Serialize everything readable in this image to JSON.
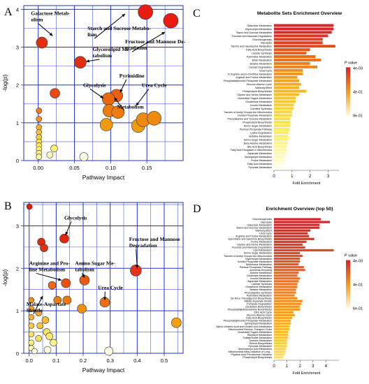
{
  "chart_data": [
    {
      "panel": "A",
      "type": "scatter",
      "xlabel": "Pathway Impact",
      "ylabel": "-log(p)",
      "xlim": [
        -0.02,
        0.2
      ],
      "ylim": [
        0,
        4.1
      ],
      "xticks": [
        "0.00",
        "0.05",
        "0.10",
        "0.15"
      ],
      "yticks": [
        "0",
        "1",
        "2",
        "3",
        "4"
      ],
      "grid": true,
      "points": [
        {
          "x": 0.005,
          "y": 3.12,
          "size": 16,
          "color": "#e03010"
        },
        {
          "x": 0.148,
          "y": 3.93,
          "size": 21,
          "color": "#e81c10"
        },
        {
          "x": 0.183,
          "y": 3.7,
          "size": 21,
          "color": "#e81c10"
        },
        {
          "x": 0.058,
          "y": 2.6,
          "size": 17,
          "color": "#e02e10"
        },
        {
          "x": 0.108,
          "y": 1.72,
          "size": 18,
          "color": "#ea6010"
        },
        {
          "x": 0.097,
          "y": 1.63,
          "size": 18,
          "color": "#ea6810"
        },
        {
          "x": 0.098,
          "y": 1.32,
          "size": 18,
          "color": "#ee7a10"
        },
        {
          "x": 0.11,
          "y": 1.28,
          "size": 18,
          "color": "#ee7a10"
        },
        {
          "x": 0.145,
          "y": 1.08,
          "size": 20,
          "color": "#ef8a10"
        },
        {
          "x": 0.16,
          "y": 1.12,
          "size": 20,
          "color": "#ef8a10"
        },
        {
          "x": 0.138,
          "y": 0.92,
          "size": 19,
          "color": "#f09a10"
        },
        {
          "x": 0.094,
          "y": 0.95,
          "size": 18,
          "color": "#f09a10"
        },
        {
          "x": 0.023,
          "y": 1.78,
          "size": 14,
          "color": "#e84812"
        },
        {
          "x": 0.001,
          "y": 1.32,
          "size": 8,
          "color": "#ef7a20"
        },
        {
          "x": 0.001,
          "y": 1.1,
          "size": 8,
          "color": "#f39030"
        },
        {
          "x": 0.001,
          "y": 0.88,
          "size": 8,
          "color": "#f6b030"
        },
        {
          "x": 0.001,
          "y": 0.75,
          "size": 8,
          "color": "#f6c040"
        },
        {
          "x": 0.001,
          "y": 0.62,
          "size": 8,
          "color": "#f8d040"
        },
        {
          "x": 0.001,
          "y": 0.5,
          "size": 8,
          "color": "#fae050"
        },
        {
          "x": 0.001,
          "y": 0.4,
          "size": 8,
          "color": "#fce860"
        },
        {
          "x": 0.001,
          "y": 0.3,
          "size": 8,
          "color": "#fcf070"
        },
        {
          "x": 0.001,
          "y": 0.2,
          "size": 8,
          "color": "#fef080"
        },
        {
          "x": 0.001,
          "y": 0.1,
          "size": 8,
          "color": "#fef8a0"
        },
        {
          "x": 0.022,
          "y": 0.32,
          "size": 10,
          "color": "#fcf070"
        },
        {
          "x": 0.016,
          "y": 0.15,
          "size": 9,
          "color": "#fefac0"
        },
        {
          "x": 0.063,
          "y": 0.1,
          "size": 12,
          "color": "#fffde8"
        }
      ],
      "annotations": [
        {
          "text": "Galactose Metab-",
          "text2": "olism",
          "x": -0.01,
          "y": 3.85,
          "ax": 0.02,
          "ay": 3.3
        },
        {
          "text": "Starch and Sucrose Metabo-",
          "text2": "lism",
          "x": 0.068,
          "y": 3.45,
          "ax": 0.12,
          "ay": 3.88
        },
        {
          "text": "Glycerolipid Me-",
          "text2": "tabolism",
          "x": 0.075,
          "y": 2.9,
          "ax": 0.066,
          "ay": 2.62
        },
        {
          "text": "Fructose and Mannose De-",
          "text2": "gradation",
          "x": 0.12,
          "y": 3.1,
          "ax": 0.175,
          "ay": 3.4
        },
        {
          "text": "Pyrimidine",
          "text2": "",
          "x": 0.112,
          "y": 2.2,
          "ax": 0.113,
          "ay": 1.8
        },
        {
          "text": "Glycolysis",
          "text2": "",
          "x": 0.062,
          "y": 1.95,
          "ax": 0.09,
          "ay": 1.65
        },
        {
          "text": "Metabolism",
          "text2": "",
          "x": 0.109,
          "y": 1.38,
          "ax": 0.105,
          "ay": 1.67
        },
        {
          "text": "Urea Cycle",
          "text2": "",
          "x": 0.143,
          "y": 1.95,
          "ax": 0.135,
          "ay": 1.45
        }
      ]
    },
    {
      "panel": "B",
      "type": "scatter",
      "xlabel": "Pathway Impact",
      "ylabel": "-log(p)",
      "xlim": [
        -0.02,
        0.57
      ],
      "ylim": [
        0,
        3.55
      ],
      "xticks": [
        "0.0",
        "0.1",
        "0.2",
        "0.3",
        "0.4",
        "0.5"
      ],
      "yticks": [
        "0",
        "1",
        "2",
        "3"
      ],
      "grid": true,
      "points": [
        {
          "x": 0.001,
          "y": 3.45,
          "size": 8,
          "color": "#e41a10"
        },
        {
          "x": 0.045,
          "y": 2.62,
          "size": 11,
          "color": "#e02a10"
        },
        {
          "x": 0.055,
          "y": 2.48,
          "size": 11,
          "color": "#e03210"
        },
        {
          "x": 0.13,
          "y": 2.7,
          "size": 13,
          "color": "#e02610"
        },
        {
          "x": 0.395,
          "y": 1.95,
          "size": 16,
          "color": "#e8321a"
        },
        {
          "x": 0.136,
          "y": 1.65,
          "size": 13,
          "color": "#ea5010"
        },
        {
          "x": 0.205,
          "y": 1.72,
          "size": 14,
          "color": "#ea5a10"
        },
        {
          "x": 0.085,
          "y": 1.6,
          "size": 11,
          "color": "#ee6a10"
        },
        {
          "x": 0.28,
          "y": 1.2,
          "size": 14,
          "color": "#ef7010"
        },
        {
          "x": 0.195,
          "y": 1.05,
          "size": 13,
          "color": "#f09010"
        },
        {
          "x": 0.14,
          "y": 1.25,
          "size": 12,
          "color": "#ef7810"
        },
        {
          "x": 0.105,
          "y": 1.25,
          "size": 11,
          "color": "#ef7a10"
        },
        {
          "x": 0.545,
          "y": 0.72,
          "size": 14,
          "color": "#f5a010"
        },
        {
          "x": 0.295,
          "y": 0.05,
          "size": 12,
          "color": "#fffde8"
        },
        {
          "x": 0.008,
          "y": 1.25,
          "size": 8,
          "color": "#f09020"
        },
        {
          "x": 0.008,
          "y": 1.05,
          "size": 8,
          "color": "#f3a030"
        },
        {
          "x": 0.008,
          "y": 0.85,
          "size": 8,
          "color": "#f6b030"
        },
        {
          "x": 0.008,
          "y": 0.65,
          "size": 8,
          "color": "#f8c840"
        },
        {
          "x": 0.008,
          "y": 0.45,
          "size": 8,
          "color": "#fae060"
        },
        {
          "x": 0.008,
          "y": 0.25,
          "size": 8,
          "color": "#fcf080"
        },
        {
          "x": 0.008,
          "y": 0.12,
          "size": 8,
          "color": "#fef8b0"
        },
        {
          "x": 0.035,
          "y": 0.95,
          "size": 9,
          "color": "#f5a830"
        },
        {
          "x": 0.04,
          "y": 0.65,
          "size": 9,
          "color": "#f8c840"
        },
        {
          "x": 0.035,
          "y": 0.35,
          "size": 9,
          "color": "#fae060"
        },
        {
          "x": 0.06,
          "y": 0.78,
          "size": 10,
          "color": "#f6b838"
        },
        {
          "x": 0.065,
          "y": 0.5,
          "size": 10,
          "color": "#fae068"
        },
        {
          "x": 0.075,
          "y": 0.4,
          "size": 10,
          "color": "#fce870"
        },
        {
          "x": 0.068,
          "y": 0.08,
          "size": 10,
          "color": "#fffbe0"
        },
        {
          "x": 0.09,
          "y": 0.25,
          "size": 10,
          "color": "#fdf090"
        },
        {
          "x": 0.02,
          "y": 0.05,
          "size": 8,
          "color": "#fffde8"
        }
      ],
      "annotations": [
        {
          "text": "Glycolysis",
          "text2": "",
          "x": 0.13,
          "y": 3.15,
          "ax": 0.135,
          "ay": 2.78
        },
        {
          "text": "Arginine and Pro-",
          "text2": "line Metabolism",
          "x": 0.0,
          "y": 2.08,
          "ax": 0.12,
          "ay": 1.72
        },
        {
          "text": "Amino Sugar Me-",
          "text2": "tabolism",
          "x": 0.17,
          "y": 2.08,
          "ax": 0.205,
          "ay": 1.78
        },
        {
          "text": "Fructose and Mannose",
          "text2": "Degradation",
          "x": 0.37,
          "y": 2.65,
          "ax": 0.4,
          "ay": 2.0
        },
        {
          "text": "Urea Cycle",
          "text2": "",
          "x": 0.255,
          "y": 1.5,
          "ax": 0.28,
          "ay": 1.25
        },
        {
          "text": "Malate-Aspartate",
          "text2": "Shuttle",
          "x": -0.01,
          "y": 1.12,
          "ax": 0.05,
          "ay": 1.35
        }
      ]
    },
    {
      "panel": "C",
      "type": "bar",
      "orientation": "horizontal",
      "title": "Metabolite Sets Enrichment Overview",
      "xlabel": "Fold Enrichment",
      "xticks": [
        "0",
        "1",
        "2",
        "3"
      ],
      "xlim": [
        0,
        3.6
      ],
      "legend_title": "P value",
      "legend_labels": [
        "4e-03",
        "4e-01",
        "9e-01"
      ],
      "categories": [
        "Galactose Metabolism",
        "Glycerolipid Metabolism",
        "Starch and Sucrose Metabolism",
        "Fructose and Mannose Degradation",
        "Gluconeogenesis",
        "Glycolysis",
        "Taurine and Hypotaurine Metabolism",
        "Fatty Acid Biosynthesis",
        "Lactose Synthesis",
        "Pyrimidine Metabolism",
        "Biotin Metabolism",
        "Betaine Metabolism",
        "Lactose Degradation",
        "Urea Cycle",
        "D-Arginine and D-Ornithine Metabolism",
        "Arginine and Proline Metabolism",
        "Phosphatidylinositol Phosphate Metabolism",
        "Glucose-Alanine Cycle",
        "Warburg Effect",
        "Phospholipid Biosynthesis",
        "Glycine and Serine Metabolism",
        "Nucleotide Sugars Metabolism",
        "Glutathione Metabolism",
        "Inositol Metabolism",
        "Carnitine Synthesis",
        "Transfer of Acetyl Groups into Mitochondria",
        "Inositol Phosphate Metabolism",
        "Phenylalanine and Tyrosine Metabolism",
        "Phospholipid Biosynthesis",
        "Amino Sugar Metabolism",
        "Pentose Phosphate Pathway",
        "Lysine Degradation",
        "Histidine Metabolism",
        "Amino Sugar Metabolism",
        "Beta-Alanine Metabolism",
        "Bile Acid Biosynthesis",
        "Fatty Acid Elongation In Mitochondria",
        "Aspartate Metabolism",
        "Sphingolipid Metabolism",
        "Purine Metabolism",
        "Fatty Acid Metabolism",
        "Pyruvate Metabolism"
      ],
      "values": [
        3.3,
        3.3,
        3.2,
        3.0,
        2.7,
        2.7,
        3.4,
        2.0,
        1.8,
        2.3,
        2.6,
        2.0,
        2.4,
        1.6,
        1.6,
        1.3,
        1.4,
        1.5,
        1.4,
        1.8,
        1.4,
        1.2,
        1.2,
        1.1,
        1.1,
        1.0,
        1.0,
        0.9,
        0.9,
        0.9,
        0.85,
        0.8,
        0.8,
        0.8,
        0.75,
        0.7,
        0.7,
        0.65,
        0.6,
        0.6,
        0.55,
        0.5
      ],
      "colors": [
        "#d8232a",
        "#d8232a",
        "#da2a28",
        "#dd3426",
        "#e04024",
        "#e04024",
        "#e24a22",
        "#e55520",
        "#e8601e",
        "#e96a1e",
        "#eb731e",
        "#ec7c1e",
        "#ee851e",
        "#ef8d1e",
        "#f0951e",
        "#f19d20",
        "#f2a420",
        "#f3ab22",
        "#f4b224",
        "#f5b826",
        "#f6be28",
        "#f7c42a",
        "#f8c92e",
        "#f8ce32",
        "#f9d236",
        "#f9d63a",
        "#fada40",
        "#fade48",
        "#fbe150",
        "#fbe458",
        "#fce760",
        "#fcea6a",
        "#fced74",
        "#fdef7e",
        "#fdf188",
        "#fdf394",
        "#fef5a0",
        "#fef7ac",
        "#fef9b8",
        "#fefac4",
        "#fffcd4",
        "#fffde4"
      ]
    },
    {
      "panel": "D",
      "type": "bar",
      "orientation": "horizontal",
      "title": "Enrichment Overview (top 50)",
      "xlabel": "Fold Enrichment",
      "xticks": [
        "0",
        "1",
        "2",
        "3",
        "4"
      ],
      "xlim": [
        0,
        5
      ],
      "legend_title": "P value",
      "legend_labels": [
        "4e-03",
        "4e-01",
        "6e-01"
      ],
      "categories": [
        "Gluconeogenesis",
        "Glycolysis",
        "Galactose Metabolism",
        "Starch and Sucrose Metabolism",
        "Warburg Effect",
        "Urea Cycle",
        "Arginine and Proline Metabolism",
        "Spermidine and Spermine Biosynthesis",
        "Purine Metabolism",
        "Glycine and Serine Metabolism",
        "Fructose and Mannose Degradation",
        "Lipid Metabolism",
        "Amino Sugar Metabolism",
        "Transfer of Acetyl Groups into Mitochondria",
        "Glycerolipid Metabolism",
        "Inositol Phosphate Metabolism",
        "Methionine Metabolism",
        "Pentose Phosphate Pathway",
        "Ammonia Recycling",
        "Alanine Metabolism",
        "Glutamate Metabolism",
        "Inositol Metabolism",
        "Aspartate Metabolism",
        "Lactose Synthesis",
        "Glutathione Metabolism",
        "Betaine Metabolism",
        "Phenylalanine Synthesis",
        "Pyrimidine Metabolism",
        "De Novo Triacylglycerol Biosynthesis",
        "Malate-Aspartate Shuttle",
        "Trehalose Degradation",
        "Cardiolipin Biosynthesis",
        "Phosphatidylethanolamine Biosynthesis",
        "Citric Acid Cycle",
        "Glucose-Alanine Cycle",
        "Fatty Acid Biosynthesis",
        "Phosphatidylinositol Phosphate Metabolism",
        "Sphingolipid Metabolism",
        "Alpha Linolenic Acid and Linoleic Acid Metabolism",
        "Mitochondrial Electron Transport Chain",
        "Nucleotide Sugars Metabolism",
        "Riboflavin Metabolism",
        "Sulfate/Sulfite Metabolism",
        "Tyrosine Metabolism",
        "Steroid Biosynthesis",
        "Pyruvate Metabolism",
        "Selenoamino Acid Metabolism",
        "Mitochondrial Beta-Oxidation of Long...",
        "Phytanic Acid Peroxisomal Oxidation",
        "Phospholipid Biosynthesis"
      ],
      "values": [
        3.6,
        4.3,
        3.5,
        3.5,
        2.8,
        2.6,
        2.7,
        3.1,
        2.5,
        2.2,
        2.4,
        4.6,
        2.0,
        2.2,
        2.0,
        2.0,
        1.9,
        2.3,
        2.4,
        1.9,
        1.8,
        2.0,
        1.9,
        1.8,
        1.8,
        1.7,
        1.7,
        1.6,
        1.8,
        2.2,
        2.1,
        2.0,
        2.0,
        1.5,
        1.6,
        1.4,
        1.3,
        1.3,
        1.2,
        1.2,
        1.1,
        1.1,
        1.1,
        1.0,
        1.0,
        1.0,
        0.9,
        0.9,
        0.8,
        0.7
      ],
      "colors": [
        "#d8232a",
        "#d8232a",
        "#d9262a",
        "#d9262a",
        "#da2a28",
        "#db2e27",
        "#dc3226",
        "#dd3626",
        "#de3a25",
        "#df3e24",
        "#e04224",
        "#e04624",
        "#e24a22",
        "#e34e22",
        "#e45221",
        "#e55620",
        "#e65a20",
        "#e75e1f",
        "#e8621e",
        "#e9661e",
        "#ea6a1e",
        "#eb6e1e",
        "#ec721e",
        "#ec761e",
        "#ed7a1e",
        "#ee7e1e",
        "#ef821e",
        "#ef861e",
        "#f08a1e",
        "#f18e1e",
        "#f2921f",
        "#f29620",
        "#f39a20",
        "#f49e21",
        "#f5a222",
        "#f5a624",
        "#f6aa26",
        "#f7ae28",
        "#f7b22a",
        "#f8b62c",
        "#f8ba30",
        "#f9be34",
        "#f9c238",
        "#fac63c",
        "#faca40",
        "#fbce46",
        "#fbd24c",
        "#fcd652",
        "#fcda5a",
        "#fddf62"
      ]
    }
  ]
}
